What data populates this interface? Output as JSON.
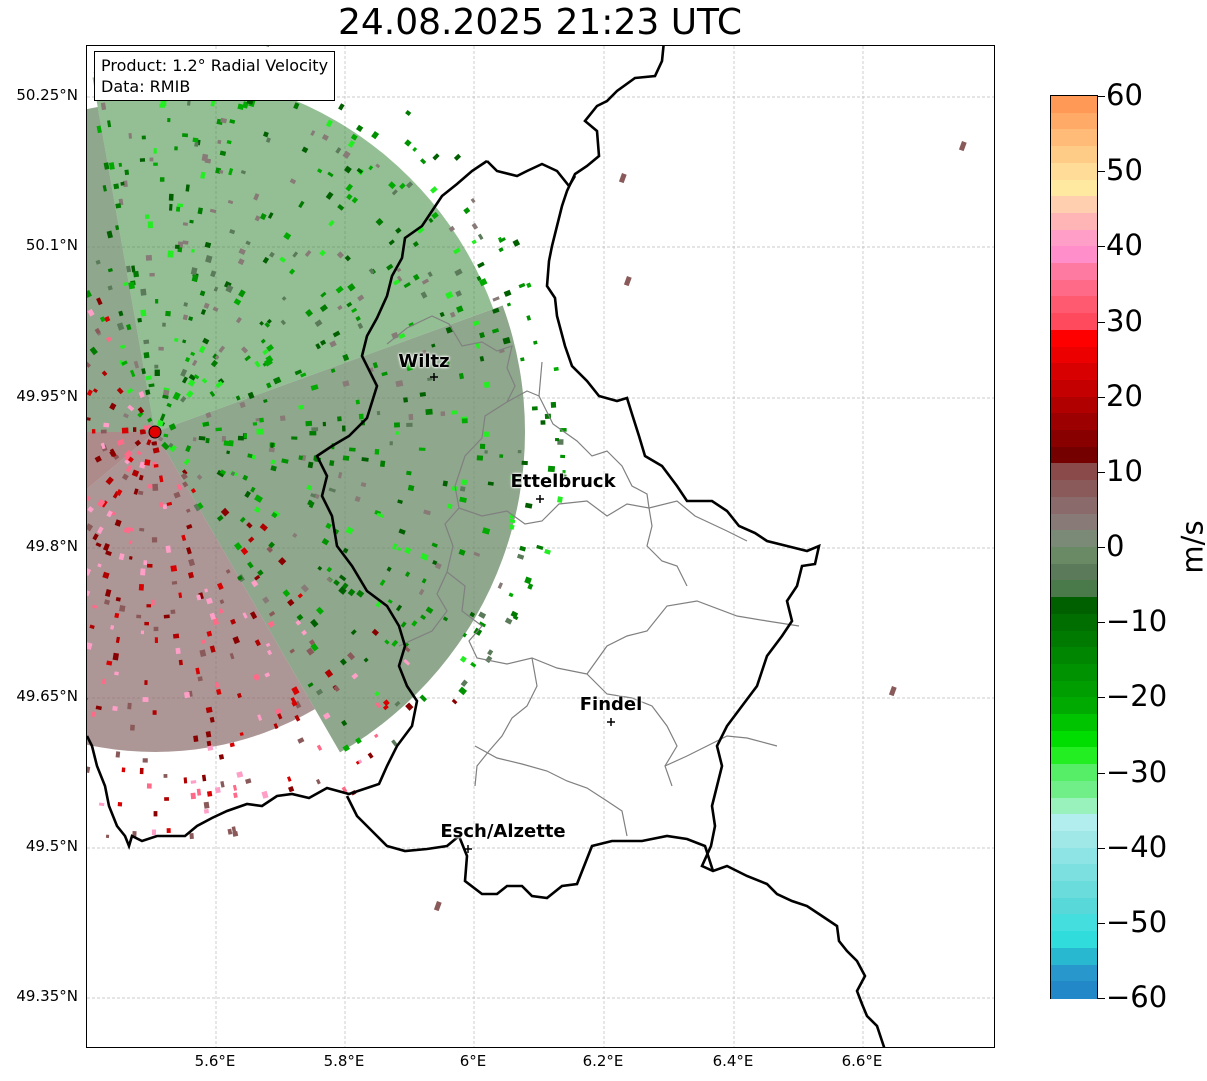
{
  "title": "24.08.2025 21:23 UTC",
  "info": {
    "product": "Product: 1.2° Radial Velocity",
    "data": "Data: RMIB"
  },
  "lat_ticks": [
    "50.25°N",
    "50.1°N",
    "49.95°N",
    "49.8°N",
    "49.65°N",
    "49.5°N",
    "49.35°N"
  ],
  "lon_ticks": [
    "5.6°E",
    "5.8°E",
    "6°E",
    "6.2°E",
    "6.4°E",
    "6.6°E"
  ],
  "cities": [
    {
      "name": "Wiltz"
    },
    {
      "name": "Ettelbruck"
    },
    {
      "name": "Findel"
    },
    {
      "name": "Esch/Alzette"
    }
  ],
  "colorbar": {
    "unit": "m/s",
    "tick_labels": [
      "60",
      "50",
      "40",
      "30",
      "20",
      "10",
      "0",
      "−10",
      "−20",
      "−30",
      "−40",
      "−50",
      "−60"
    ],
    "range": [
      -60,
      60
    ],
    "colors_top_to_bottom": [
      "#ff9955",
      "#ffaa66",
      "#ffbb77",
      "#ffcc88",
      "#ffdd99",
      "#ffe8a0",
      "#ffcfaf",
      "#ffb5b5",
      "#ff9fc8",
      "#ff8ecb",
      "#ff7aa0",
      "#ff6a88",
      "#ff5a70",
      "#ff4a5e",
      "#ff0000",
      "#ec0000",
      "#d80000",
      "#c40000",
      "#b00000",
      "#9c0000",
      "#880000",
      "#740000",
      "#8a4a4a",
      "#8a5a5a",
      "#8a6a6a",
      "#877a77",
      "#7a8a76",
      "#6a8a66",
      "#5a7a5a",
      "#4a7a4a",
      "#006000",
      "#006e00",
      "#007a00",
      "#008600",
      "#009200",
      "#009e00",
      "#00aa00",
      "#00c400",
      "#00dd00",
      "#22ee22",
      "#55ee66",
      "#70ee88",
      "#99f2bb",
      "#b2eeee",
      "#a0e8e8",
      "#8ee4e4",
      "#7ce0e0",
      "#6adcdc",
      "#58d8d8",
      "#44dede",
      "#30dcdc",
      "#28b8d0",
      "#2898cc",
      "#2288c8"
    ]
  },
  "colors": {
    "radar_site": "#e00000",
    "border_country": "#000000",
    "border_canton": "#808080",
    "gridline": "#bbbbbb"
  }
}
